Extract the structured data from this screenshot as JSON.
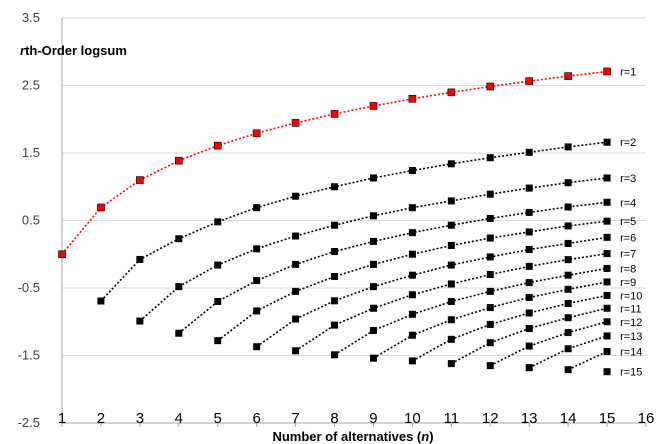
{
  "chart_data": {
    "type": "line",
    "title": "",
    "ylabel_prefix": "r",
    "ylabel_rest": "th-Order logsum",
    "xlabel_main": "Number of alternatives (",
    "xlabel_var": "n",
    "xlabel_end": ")",
    "xlim": [
      1,
      16
    ],
    "ylim": [
      -2.5,
      3.5
    ],
    "x_ticks": [
      "1",
      "2",
      "3",
      "4",
      "5",
      "6",
      "7",
      "8",
      "9",
      "10",
      "11",
      "12",
      "13",
      "14",
      "15",
      "16"
    ],
    "y_ticks": [
      "3.5",
      "2.5",
      "1.5",
      "0.5",
      "-0.5",
      "-1.5",
      "-2.5"
    ],
    "grid": "horizontal",
    "legend": "inline-right",
    "colors": {
      "highlight": "#ff0000",
      "default": "#000000",
      "grid": "#d9d9d9"
    },
    "series": [
      {
        "name": "r=1",
        "start": 1,
        "values": [
          0,
          0.693,
          1.099,
          1.386,
          1.609,
          1.792,
          1.946,
          2.079,
          2.197,
          2.303,
          2.398,
          2.485,
          2.565,
          2.639,
          2.708
        ]
      },
      {
        "name": "r=2",
        "start": 2,
        "values": [
          -0.693,
          -0.077,
          0.23,
          0.48,
          0.69,
          0.86,
          1.0,
          1.13,
          1.24,
          1.34,
          1.43,
          1.51,
          1.59,
          1.66
        ]
      },
      {
        "name": "r=3",
        "start": 3,
        "values": [
          -0.99,
          -0.48,
          -0.16,
          0.08,
          0.27,
          0.43,
          0.57,
          0.69,
          0.79,
          0.89,
          0.98,
          1.06,
          1.13
        ]
      },
      {
        "name": "r=4",
        "start": 4,
        "values": [
          -1.17,
          -0.7,
          -0.39,
          -0.15,
          0.04,
          0.19,
          0.32,
          0.43,
          0.53,
          0.62,
          0.7,
          0.77
        ]
      },
      {
        "name": "r=5",
        "start": 5,
        "values": [
          -1.28,
          -0.84,
          -0.55,
          -0.33,
          -0.15,
          0.0,
          0.13,
          0.24,
          0.33,
          0.42,
          0.49
        ]
      },
      {
        "name": "r=6",
        "start": 6,
        "values": [
          -1.37,
          -0.96,
          -0.69,
          -0.48,
          -0.31,
          -0.16,
          -0.04,
          0.07,
          0.16,
          0.25
        ]
      },
      {
        "name": "r=7",
        "start": 7,
        "values": [
          -1.43,
          -1.05,
          -0.8,
          -0.6,
          -0.44,
          -0.3,
          -0.18,
          -0.08,
          0.01
        ]
      },
      {
        "name": "r=8",
        "start": 8,
        "values": [
          -1.49,
          -1.13,
          -0.89,
          -0.7,
          -0.55,
          -0.42,
          -0.31,
          -0.21
        ]
      },
      {
        "name": "r=9",
        "start": 9,
        "values": [
          -1.54,
          -1.2,
          -0.97,
          -0.79,
          -0.64,
          -0.52,
          -0.41
        ]
      },
      {
        "name": "r=10",
        "start": 10,
        "values": [
          -1.58,
          -1.26,
          -1.04,
          -0.87,
          -0.73,
          -0.61
        ]
      },
      {
        "name": "r=11",
        "start": 11,
        "values": [
          -1.62,
          -1.31,
          -1.1,
          -0.94,
          -0.8
        ]
      },
      {
        "name": "r=12",
        "start": 12,
        "values": [
          -1.65,
          -1.36,
          -1.16,
          -1.0
        ]
      },
      {
        "name": "r=13",
        "start": 13,
        "values": [
          -1.68,
          -1.4,
          -1.21
        ]
      },
      {
        "name": "r=14",
        "start": 14,
        "values": [
          -1.71,
          -1.44
        ]
      },
      {
        "name": "r=15",
        "start": 15,
        "values": [
          -1.74
        ]
      }
    ]
  }
}
